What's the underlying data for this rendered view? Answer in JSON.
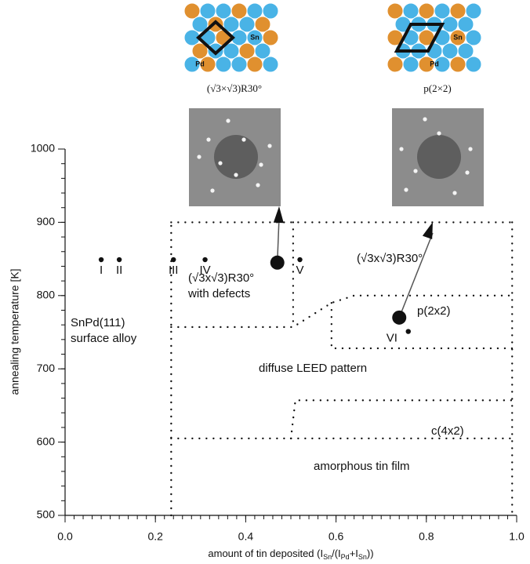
{
  "chart_data": {
    "type": "phase-diagram",
    "ylabel": "annealing temperature [K]",
    "xlabel_parts": [
      "amount of tin deposited (I",
      "Sn",
      "/(I",
      "Pd",
      "+I",
      "Sn",
      "))"
    ],
    "xlim": [
      0,
      1
    ],
    "xticks": [
      {
        "value": 0,
        "label": "0.0"
      },
      0.2,
      0.4,
      0.6,
      0.8,
      {
        "value": 1,
        "label": "1.0"
      }
    ],
    "ylim": [
      500,
      1000
    ],
    "yticks": [
      500,
      600,
      700,
      800,
      900,
      1000
    ],
    "points": {
      "labels": [
        "I",
        "II",
        "III",
        "IV",
        "V",
        "VI"
      ],
      "x": [
        0.08,
        0.12,
        0.24,
        0.31,
        0.52,
        0.76
      ],
      "y": [
        849,
        849,
        849,
        849,
        849,
        751
      ]
    },
    "highlighted": {
      "x": [
        0.47,
        0.74
      ],
      "y": [
        845,
        770
      ]
    },
    "boundaries": [
      {
        "x": [
          0.235,
          0.235
        ],
        "y": [
          500,
          900
        ]
      },
      {
        "x": [
          0.235,
          0.99
        ],
        "y": [
          900,
          900
        ]
      },
      {
        "x": [
          0.99,
          0.99
        ],
        "y": [
          900,
          500
        ]
      },
      {
        "x": [
          0.505,
          0.505
        ],
        "y": [
          900,
          757
        ]
      },
      {
        "x": [
          0.235,
          0.505,
          0.59,
          0.64,
          0.99
        ],
        "y": [
          757,
          757,
          790,
          800,
          800
        ]
      },
      {
        "x": [
          0.59,
          0.59,
          0.99
        ],
        "y": [
          790,
          728,
          728
        ]
      },
      {
        "x": [
          0.5,
          0.51,
          0.99
        ],
        "y": [
          605,
          657,
          657
        ]
      },
      {
        "x": [
          0.235,
          0.99
        ],
        "y": [
          605,
          605
        ]
      }
    ],
    "regions": [
      "SnPd(111)",
      "surface alloy",
      "(√3x√3)R30°",
      "with defects",
      "(√3x√3)R30°",
      "p(2x2)",
      "diffuse LEED pattern",
      "c(4x2)",
      "amorphous tin film"
    ],
    "insets": [
      {
        "caption": "(√3×√3)R30°",
        "sn": "Sn",
        "pd": "Pd"
      },
      {
        "caption": "p(2×2)",
        "sn": "Sn",
        "pd": "Pd"
      }
    ]
  }
}
